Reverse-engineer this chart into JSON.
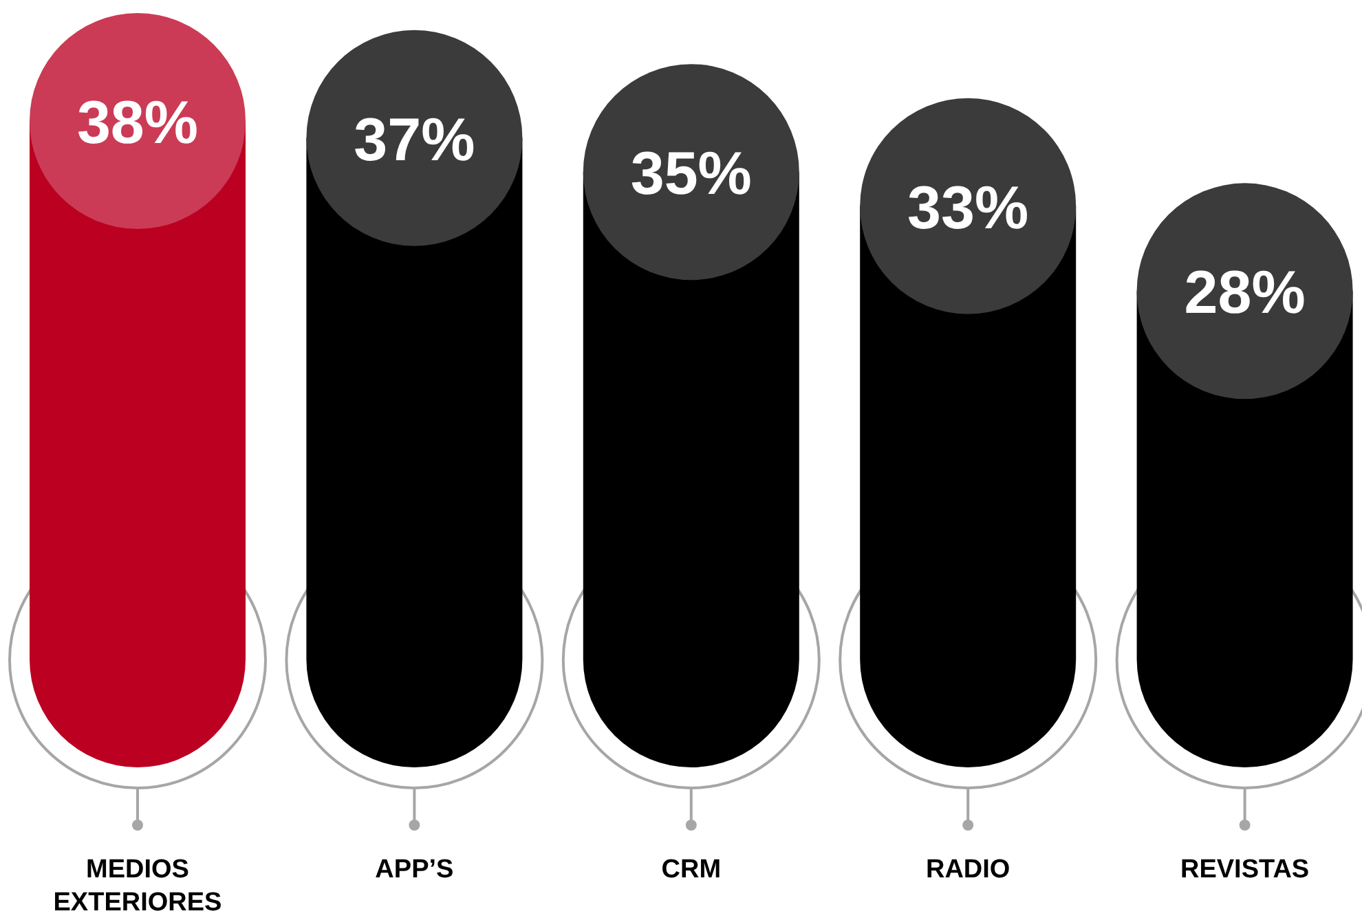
{
  "chart_data": {
    "type": "bar",
    "categories": [
      "MEDIOS EXTERIORES",
      "APP’S",
      "CRM",
      "RADIO",
      "REVISTAS"
    ],
    "values": [
      38,
      37,
      35,
      33,
      28
    ],
    "colors": [
      "#bb0022",
      "#000000",
      "#000000",
      "#000000",
      "#000000"
    ],
    "value_labels": [
      "38%",
      "37%",
      "35%",
      "33%",
      "28%"
    ]
  }
}
